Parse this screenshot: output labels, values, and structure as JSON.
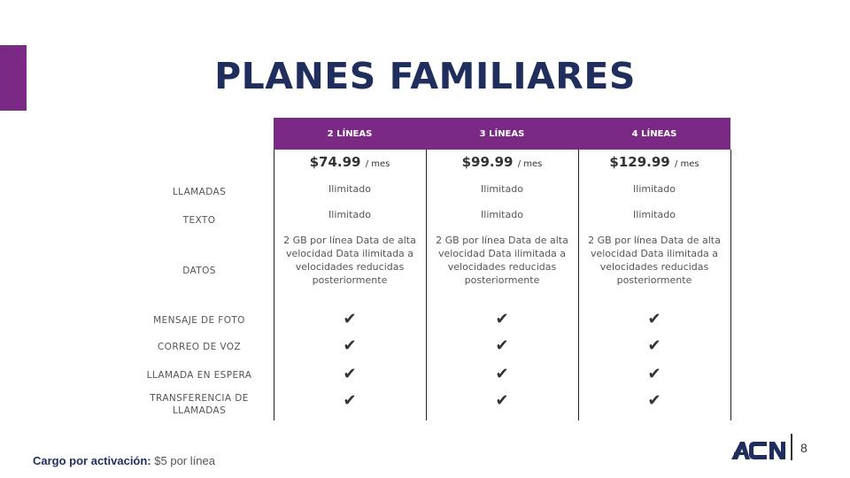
{
  "slide": {
    "title": "PLANES FAMILIARES",
    "page_number": "8",
    "accent_color": "#7a2a84",
    "title_color": "#1f2e5c"
  },
  "plans": [
    {
      "header": "2 LÍNEAS",
      "price": "$74.99",
      "per": "/ mes"
    },
    {
      "header": "3 LÍNEAS",
      "price": "$99.99",
      "per": "/ mes"
    },
    {
      "header": "4 LÍNEAS",
      "price": "$129.99",
      "per": "/ mes"
    }
  ],
  "rows": [
    {
      "label": "LLAMADAS",
      "values": [
        "Ilimitado",
        "Ilimitado",
        "Ilimitado"
      ]
    },
    {
      "label": "TEXTO",
      "values": [
        "Ilimitado",
        "Ilimitado",
        "Ilimitado"
      ]
    },
    {
      "label": "DATOS",
      "values": [
        "2 GB por línea Data  de alta velocidad  Data ilimitada a  velocidades reducidas posteriormente",
        "2 GB por línea Data  de alta velocidad  Data ilimitada a  velocidades reducidas posteriormente",
        "2 GB por línea Data  de alta velocidad  Data ilimitada a  velocidades reducidas posteriormente"
      ]
    },
    {
      "label": "MENSAJE DE FOTO",
      "included": [
        true,
        true,
        true
      ]
    },
    {
      "label": "CORREO DE VOZ",
      "included": [
        true,
        true,
        true
      ]
    },
    {
      "label": "LLAMADA EN ESPERA",
      "included": [
        true,
        true,
        true
      ]
    },
    {
      "label": "TRANSFERENCIA DE LLAMADAS",
      "included": [
        true,
        true,
        true
      ]
    }
  ],
  "check_icon": "checkmark-icon",
  "footer": {
    "fee_label": "Cargo por activación:",
    "fee_value": "$5 por línea"
  },
  "logo": {
    "text": "ACN",
    "icon": "acn-logo"
  }
}
